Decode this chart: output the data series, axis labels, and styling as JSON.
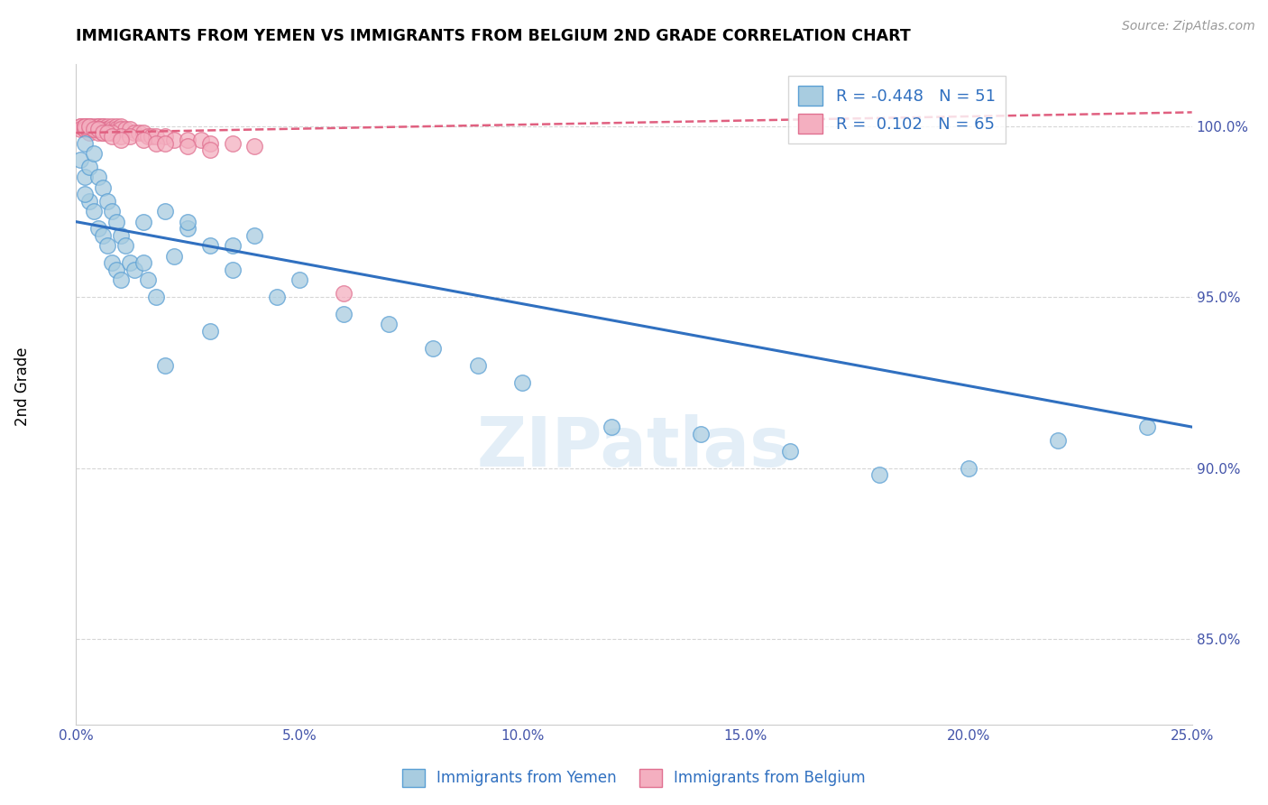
{
  "title": "IMMIGRANTS FROM YEMEN VS IMMIGRANTS FROM BELGIUM 2ND GRADE CORRELATION CHART",
  "source": "Source: ZipAtlas.com",
  "ylabel": "2nd Grade",
  "yticks": [
    0.85,
    0.9,
    0.95,
    1.0
  ],
  "ytick_labels": [
    "85.0%",
    "90.0%",
    "95.0%",
    "100.0%"
  ],
  "xlim": [
    0.0,
    0.25
  ],
  "ylim": [
    0.825,
    1.018
  ],
  "color_blue": "#a8cce0",
  "color_pink": "#f4afc0",
  "color_blue_edge": "#5a9fd4",
  "color_pink_edge": "#e07090",
  "color_blue_line": "#3070c0",
  "color_pink_line": "#e06080",
  "watermark_color": "#c8dff0",
  "legend_R_blue": "R = -0.448",
  "legend_N_blue": "N = 51",
  "legend_R_pink": "R =  0.102",
  "legend_N_pink": "N = 65",
  "legend_yemen": "Immigrants from Yemen",
  "legend_belgium": "Immigrants from Belgium",
  "blue_x": [
    0.001,
    0.002,
    0.002,
    0.003,
    0.003,
    0.004,
    0.004,
    0.005,
    0.005,
    0.006,
    0.006,
    0.007,
    0.007,
    0.008,
    0.008,
    0.009,
    0.009,
    0.01,
    0.01,
    0.011,
    0.012,
    0.013,
    0.015,
    0.016,
    0.018,
    0.02,
    0.022,
    0.025,
    0.03,
    0.035,
    0.04,
    0.045,
    0.05,
    0.06,
    0.07,
    0.08,
    0.09,
    0.1,
    0.12,
    0.14,
    0.16,
    0.18,
    0.2,
    0.22,
    0.24,
    0.015,
    0.02,
    0.025,
    0.03,
    0.035,
    0.002
  ],
  "blue_y": [
    0.99,
    0.995,
    0.985,
    0.988,
    0.978,
    0.992,
    0.975,
    0.985,
    0.97,
    0.982,
    0.968,
    0.978,
    0.965,
    0.975,
    0.96,
    0.972,
    0.958,
    0.968,
    0.955,
    0.965,
    0.96,
    0.958,
    0.972,
    0.955,
    0.95,
    0.975,
    0.962,
    0.97,
    0.965,
    0.958,
    0.968,
    0.95,
    0.955,
    0.945,
    0.942,
    0.935,
    0.93,
    0.925,
    0.912,
    0.91,
    0.905,
    0.898,
    0.9,
    0.908,
    0.912,
    0.96,
    0.93,
    0.972,
    0.94,
    0.965,
    0.98
  ],
  "pink_x": [
    0.001,
    0.001,
    0.001,
    0.002,
    0.002,
    0.002,
    0.002,
    0.003,
    0.003,
    0.003,
    0.003,
    0.003,
    0.004,
    0.004,
    0.004,
    0.005,
    0.005,
    0.005,
    0.005,
    0.006,
    0.006,
    0.006,
    0.006,
    0.007,
    0.007,
    0.007,
    0.008,
    0.008,
    0.009,
    0.009,
    0.01,
    0.01,
    0.011,
    0.012,
    0.013,
    0.014,
    0.015,
    0.016,
    0.017,
    0.018,
    0.02,
    0.022,
    0.025,
    0.028,
    0.03,
    0.035,
    0.04,
    0.005,
    0.008,
    0.01,
    0.012,
    0.015,
    0.018,
    0.02,
    0.025,
    0.03,
    0.06,
    0.002,
    0.003,
    0.004,
    0.005,
    0.006,
    0.007,
    0.008,
    0.01
  ],
  "pink_y": [
    1.0,
    1.0,
    0.999,
    1.0,
    1.0,
    0.999,
    0.999,
    1.0,
    1.0,
    0.999,
    0.999,
    0.998,
    1.0,
    0.999,
    0.999,
    1.0,
    1.0,
    0.999,
    0.998,
    1.0,
    1.0,
    0.999,
    0.998,
    1.0,
    0.999,
    0.999,
    1.0,
    0.999,
    1.0,
    0.999,
    1.0,
    0.999,
    0.999,
    0.999,
    0.998,
    0.998,
    0.998,
    0.997,
    0.997,
    0.997,
    0.997,
    0.996,
    0.996,
    0.996,
    0.995,
    0.995,
    0.994,
    0.999,
    0.998,
    0.997,
    0.997,
    0.996,
    0.995,
    0.995,
    0.994,
    0.993,
    0.951,
    1.0,
    1.0,
    0.999,
    0.999,
    0.998,
    0.998,
    0.997,
    0.996
  ],
  "blue_trend_x": [
    0.0,
    0.25
  ],
  "blue_trend_y": [
    0.972,
    0.912
  ],
  "pink_trend_x": [
    0.0,
    0.25
  ],
  "pink_trend_y": [
    0.998,
    1.004
  ]
}
